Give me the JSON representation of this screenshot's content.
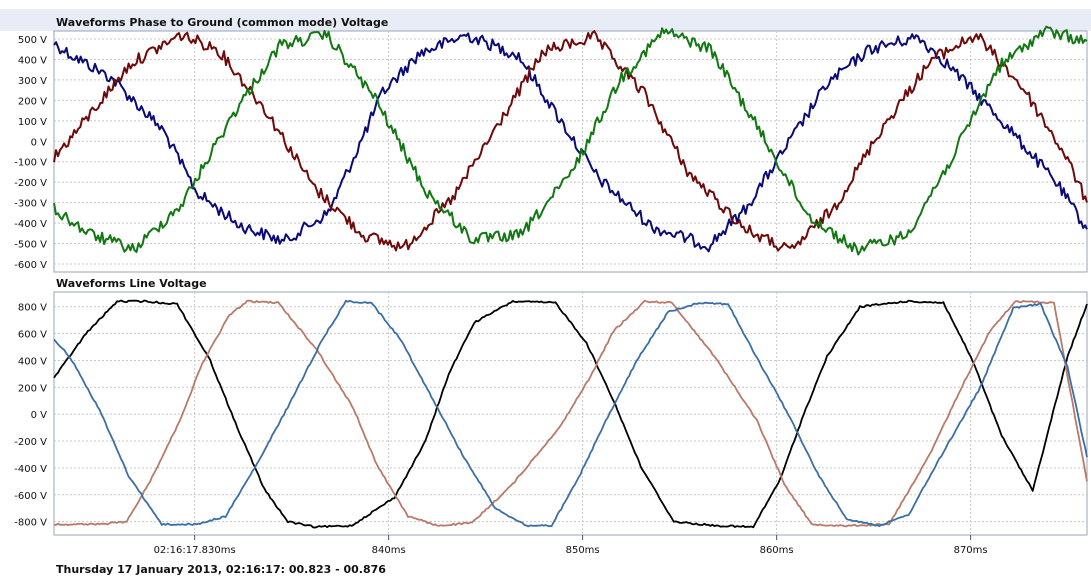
{
  "footer": "Thursday 17 January 2013, 02:16:17: 00.823 - 00.876",
  "chart_data": [
    {
      "type": "line",
      "title": "Waveforms Phase to Ground (common mode) Voltage",
      "xlim": [
        822.75,
        876.0
      ],
      "x_ticks": [
        {
          "value": 830,
          "label": "02:16:17.830ms"
        },
        {
          "value": 840,
          "label": "840ms"
        },
        {
          "value": 850,
          "label": "850ms"
        },
        {
          "value": 860,
          "label": "860ms"
        },
        {
          "value": 870,
          "label": "870ms"
        }
      ],
      "ylim": [
        -600,
        500
      ],
      "y_ticks": [
        {
          "value": 500,
          "label": "500 V"
        },
        {
          "value": 400,
          "label": "400 V"
        },
        {
          "value": 300,
          "label": "300 V"
        },
        {
          "value": 200,
          "label": "200 V"
        },
        {
          "value": 100,
          "label": "100 V"
        },
        {
          "value": 0,
          "label": "0 V"
        },
        {
          "value": -100,
          "label": "-100 V"
        },
        {
          "value": -200,
          "label": "-200 V"
        },
        {
          "value": -300,
          "label": "-300 V"
        },
        {
          "value": -400,
          "label": "-400 V"
        },
        {
          "value": -500,
          "label": "-500 V"
        },
        {
          "value": -600,
          "label": "-600 V"
        }
      ],
      "grid": true,
      "series": [
        {
          "color": "#0a0a78",
          "x": [
            822.75,
            823.5,
            825.7,
            828.4,
            830.1,
            832.3,
            834.6,
            836.9,
            838.2,
            839.7,
            841.6,
            844.0,
            846.7,
            848.6,
            850.8,
            853.6,
            856.5,
            858.4,
            860.4,
            862.6,
            864.8,
            867.3,
            869.1,
            871.8,
            874.4,
            876.0
          ],
          "y": [
            480,
            430,
            310,
            50,
            -250,
            -410,
            -490,
            -350,
            -80,
            240,
            430,
            520,
            420,
            140,
            -180,
            -420,
            -510,
            -330,
            -40,
            280,
            450,
            510,
            350,
            80,
            -200,
            -430
          ]
        },
        {
          "color": "#6e0a0a",
          "x": [
            822.75,
            824.0,
            826.7,
            829.3,
            831.2,
            833.6,
            836.2,
            838.7,
            840.8,
            843.3,
            845.9,
            848.0,
            850.6,
            853.2,
            855.5,
            858.4,
            860.7,
            863.0,
            865.4,
            868.0,
            870.3,
            872.7,
            874.9,
            876.0
          ],
          "y": [
            -80,
            60,
            380,
            520,
            450,
            160,
            -230,
            -460,
            -520,
            -280,
            120,
            440,
            510,
            230,
            -160,
            -430,
            -540,
            -320,
            60,
            400,
            520,
            260,
            -70,
            -300
          ]
        },
        {
          "color": "#127812",
          "x": [
            822.75,
            824.5,
            826.9,
            829.4,
            831.9,
            834.4,
            836.8,
            839.3,
            841.9,
            844.3,
            846.8,
            849.4,
            851.9,
            854.2,
            856.6,
            859.2,
            861.6,
            864.1,
            866.7,
            869.0,
            871.4,
            873.8,
            876.0
          ],
          "y": [
            -330,
            -450,
            -530,
            -300,
            120,
            470,
            520,
            210,
            -240,
            -480,
            -460,
            -160,
            300,
            540,
            450,
            40,
            -360,
            -530,
            -460,
            -90,
            360,
            540,
            490
          ]
        }
      ]
    },
    {
      "type": "line",
      "title": "Waveforms Line Voltage",
      "xlim": [
        822.75,
        876.0
      ],
      "x_ticks": [
        {
          "value": 830,
          "label": "02:16:17.830ms"
        },
        {
          "value": 840,
          "label": "840ms"
        },
        {
          "value": 850,
          "label": "850ms"
        },
        {
          "value": 860,
          "label": "860ms"
        },
        {
          "value": 870,
          "label": "870ms"
        }
      ],
      "ylim": [
        -840,
        850
      ],
      "y_ticks": [
        {
          "value": 800,
          "label": "800 V"
        },
        {
          "value": 600,
          "label": "600 V"
        },
        {
          "value": 400,
          "label": "400 V"
        },
        {
          "value": 200,
          "label": "200 V"
        },
        {
          "value": 0,
          "label": "0 V"
        },
        {
          "value": -200,
          "label": "-200 V"
        },
        {
          "value": -400,
          "label": "-400 V"
        },
        {
          "value": -600,
          "label": "-600 V"
        },
        {
          "value": -800,
          "label": "-800 V"
        }
      ],
      "grid": true,
      "series": [
        {
          "color": "#000000",
          "x": [
            822.75,
            824.4,
            826.0,
            827.4,
            829.1,
            830.8,
            832.2,
            833.6,
            834.8,
            836.2,
            838.1,
            840.3,
            841.9,
            843.1,
            844.4,
            846.4,
            848.6,
            850.2,
            851.6,
            853.0,
            854.7,
            856.8,
            858.8,
            860.2,
            861.4,
            862.6,
            864.3,
            866.7,
            868.6,
            870.1,
            871.6,
            873.2,
            875.0,
            876.0
          ],
          "y": [
            270,
            600,
            840,
            840,
            820,
            400,
            -100,
            -560,
            -800,
            -840,
            -830,
            -620,
            -200,
            300,
            680,
            840,
            830,
            530,
            100,
            -390,
            -800,
            -830,
            -840,
            -480,
            0,
            430,
            800,
            840,
            830,
            400,
            -160,
            -570,
            430,
            820
          ]
        },
        {
          "color": "#b97a68",
          "x": [
            822.75,
            825.1,
            826.5,
            827.7,
            829.2,
            830.4,
            831.8,
            832.7,
            834.3,
            836.3,
            838.2,
            839.4,
            841.0,
            842.5,
            844.3,
            846.4,
            848.9,
            850.4,
            851.6,
            853.2,
            854.6,
            856.8,
            859.0,
            860.4,
            861.8,
            863.6,
            865.8,
            867.9,
            869.6,
            871.0,
            872.3,
            874.3,
            876.0
          ],
          "y": [
            -820,
            -820,
            -800,
            -500,
            -60,
            380,
            740,
            840,
            830,
            480,
            40,
            -380,
            -760,
            -830,
            -810,
            -520,
            -80,
            280,
            620,
            840,
            830,
            430,
            -50,
            -520,
            -820,
            -830,
            -820,
            -300,
            220,
            620,
            840,
            830,
            -500
          ]
        },
        {
          "color": "#3a6ea8",
          "x": [
            822.75,
            823.6,
            825.1,
            826.6,
            828.3,
            830.1,
            831.6,
            833.3,
            834.9,
            836.6,
            837.8,
            839.1,
            840.6,
            842.1,
            843.8,
            845.5,
            847.1,
            848.4,
            849.7,
            851.2,
            852.8,
            854.4,
            856.0,
            857.5,
            858.9,
            860.6,
            862.1,
            863.6,
            865.3,
            866.8,
            868.6,
            870.5,
            872.2,
            873.6,
            875.0,
            876.0
          ],
          "y": [
            560,
            420,
            30,
            -460,
            -820,
            -820,
            -760,
            -350,
            80,
            560,
            840,
            830,
            560,
            160,
            -300,
            -700,
            -830,
            -830,
            -500,
            -50,
            400,
            760,
            830,
            820,
            440,
            0,
            -440,
            -780,
            -830,
            -750,
            -280,
            200,
            790,
            820,
            350,
            -320
          ]
        }
      ]
    }
  ]
}
